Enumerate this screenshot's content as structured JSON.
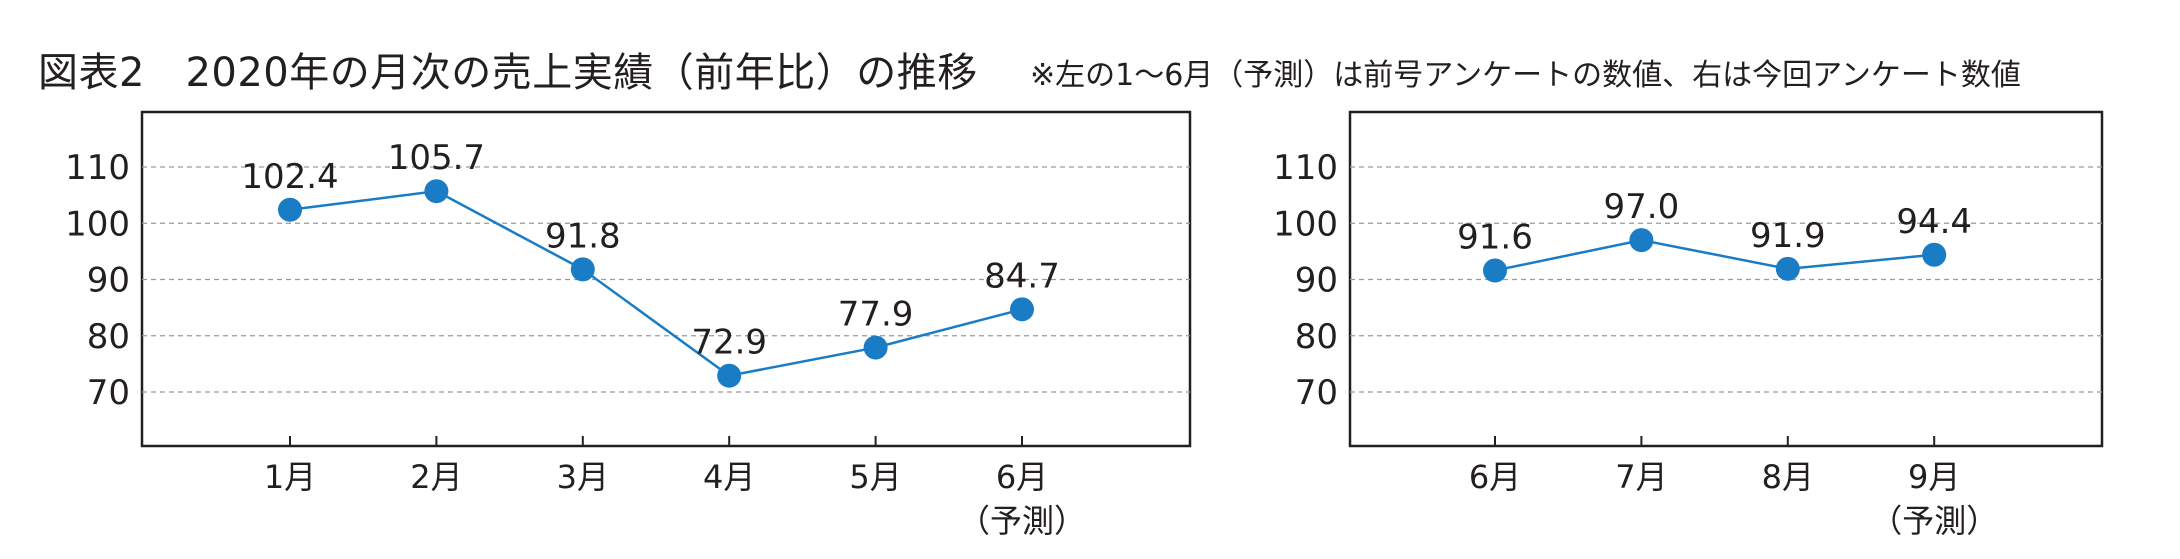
{
  "title": "図表2　2020年の月次の売上実績（前年比）の推移",
  "subtitle": "※左の1～6月（予測）は前号アンケートの数値、右は今回アンケート数値",
  "colors": {
    "series": "#1a7cc4",
    "frame": "#231f20",
    "grid": "#9a9a9a"
  },
  "chart_data": [
    {
      "type": "line",
      "categories": [
        "1月",
        "2月",
        "3月",
        "4月",
        "5月",
        "6月"
      ],
      "category_notes": [
        "",
        "",
        "",
        "",
        "",
        "（予測）"
      ],
      "values": [
        102.4,
        105.7,
        91.8,
        72.9,
        77.9,
        84.7
      ],
      "value_labels": [
        "102.4",
        "105.7",
        "91.8",
        "72.9",
        "77.9",
        "84.7"
      ],
      "yticks": [
        70,
        80,
        90,
        100,
        110
      ],
      "ytick_labels": [
        "70",
        "80",
        "90",
        "100",
        "110"
      ],
      "grid": true,
      "legend": "none"
    },
    {
      "type": "line",
      "categories": [
        "6月",
        "7月",
        "8月",
        "9月"
      ],
      "category_notes": [
        "",
        "",
        "",
        "（予測）"
      ],
      "values": [
        91.6,
        97.0,
        91.9,
        94.4
      ],
      "value_labels": [
        "91.6",
        "97.0",
        "91.9",
        "94.4"
      ],
      "yticks": [
        70,
        80,
        90,
        100,
        110
      ],
      "ytick_labels": [
        "70",
        "80",
        "90",
        "100",
        "110"
      ],
      "grid": true,
      "legend": "none"
    }
  ]
}
